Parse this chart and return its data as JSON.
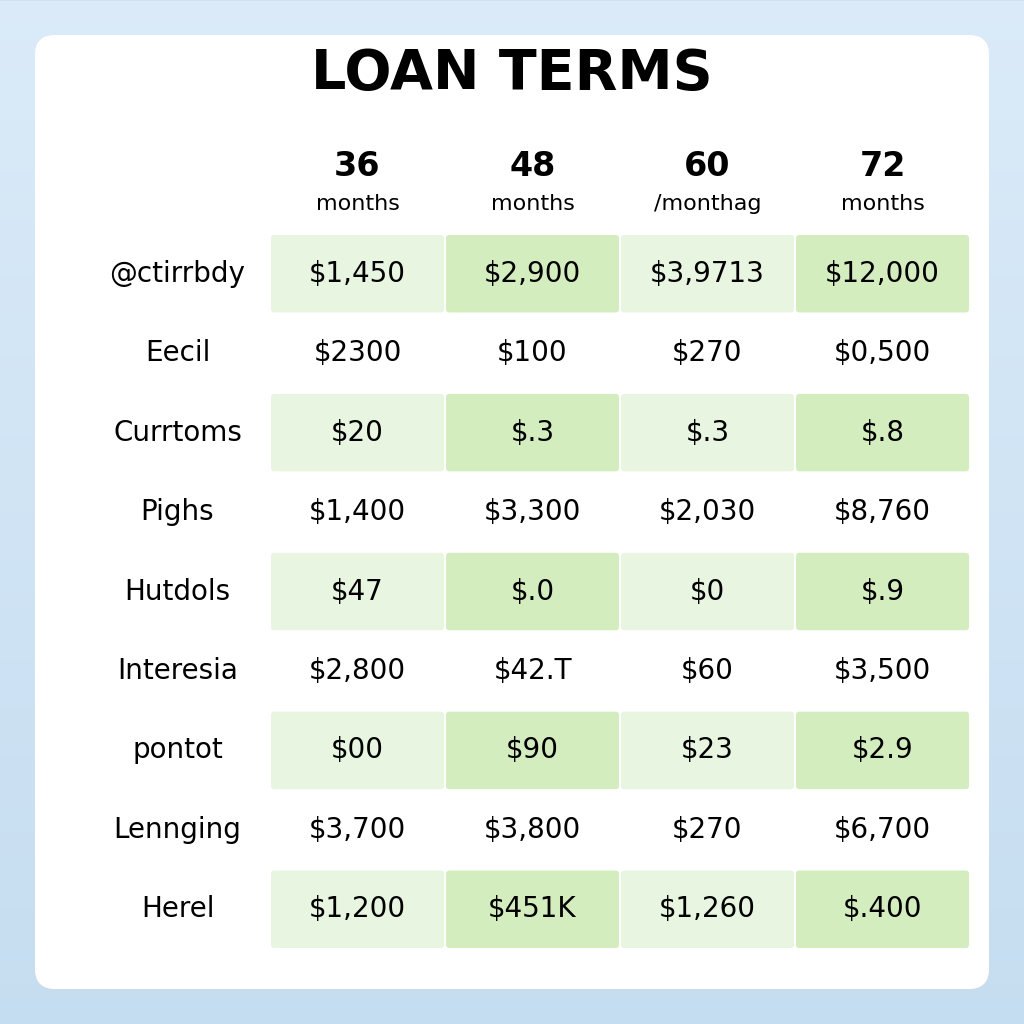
{
  "title": "LOAN TERMS",
  "col_headers_line1": [
    "36",
    "48",
    "60",
    "72"
  ],
  "col_headers_line2": [
    "months",
    "months",
    "/monthag",
    "months"
  ],
  "row_labels": [
    "@ctirrbdy",
    "Eecil",
    "Currtoms",
    "Pighs",
    "Hutdols",
    "Interesia",
    "pontot",
    "Lennging",
    "Herel"
  ],
  "table_data": [
    [
      "$1,450",
      "$2,900",
      "$3,9713",
      "$12,000"
    ],
    [
      "$2300",
      "$100",
      "$270",
      "$0,500"
    ],
    [
      "$20",
      "$.3",
      "$.3",
      "$.8"
    ],
    [
      "$1,400",
      "$3,300",
      "$2,030",
      "$8,760"
    ],
    [
      "$47",
      "$.0",
      "$0",
      "$.9"
    ],
    [
      "$2,800",
      "$42.T",
      "$60",
      "$3,500"
    ],
    [
      "$00",
      "$90",
      "$23",
      "$2.9"
    ],
    [
      "$3,700",
      "$3,800",
      "$270",
      "$6,700"
    ],
    [
      "$1,200",
      "$451K",
      "$1,260",
      "$.400"
    ]
  ],
  "highlighted_rows": [
    0,
    2,
    4,
    6,
    8
  ],
  "darker_cols": [
    1,
    3
  ],
  "highlight_light": "#e8f5e0",
  "highlight_dark": "#d4edbe",
  "normal_color": "#ffffff",
  "bg_outer_top": "#c8dff0",
  "bg_outer_bottom": "#daeaf5",
  "card_color": "#ffffff",
  "title_fontsize": 40,
  "header_num_fontsize": 24,
  "header_sub_fontsize": 16,
  "cell_fontsize": 20,
  "row_label_fontsize": 20
}
